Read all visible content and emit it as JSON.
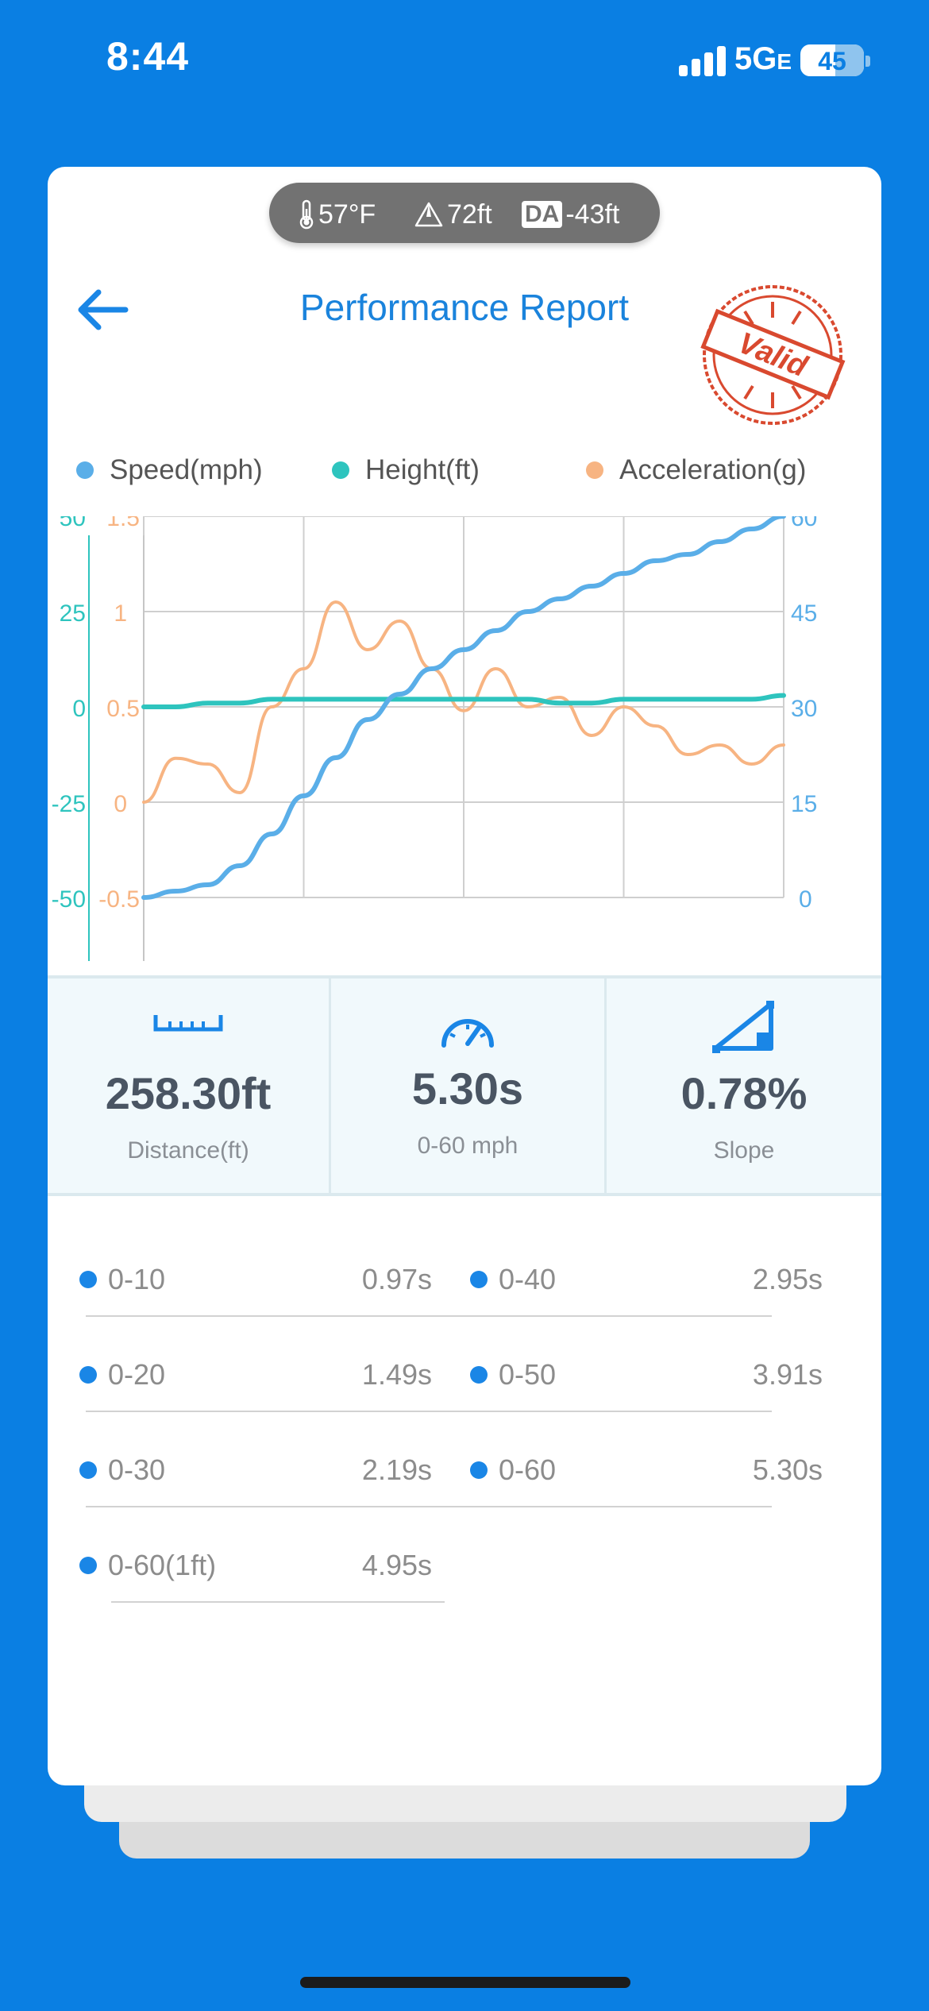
{
  "status_bar": {
    "time": "8:44",
    "network": "5G",
    "network_suffix": "E",
    "battery": "45"
  },
  "environment": {
    "temperature": "57°F",
    "elevation": "72ft",
    "da_label": "DA",
    "density_altitude": "-43ft"
  },
  "header": {
    "title": "Performance Report",
    "stamp_text": "Valid"
  },
  "legend": [
    {
      "label": "Speed(mph)",
      "color": "#5aaee8"
    },
    {
      "label": "Height(ft)",
      "color": "#2ec4be"
    },
    {
      "label": "Acceleration(g)",
      "color": "#f7b482"
    }
  ],
  "chart_data": {
    "type": "line",
    "x": [
      0,
      0.05,
      0.1,
      0.15,
      0.2,
      0.25,
      0.3,
      0.35,
      0.4,
      0.45,
      0.5,
      0.55,
      0.6,
      0.65,
      0.7,
      0.75,
      0.8,
      0.85,
      0.9,
      0.95,
      1.0
    ],
    "series": [
      {
        "name": "Speed(mph)",
        "axis": "right",
        "values": [
          0,
          1,
          2,
          5,
          10,
          16,
          22,
          28,
          32,
          36,
          39,
          42,
          45,
          47,
          49,
          51,
          53,
          54,
          56,
          58,
          60
        ]
      },
      {
        "name": "Height(ft)",
        "axis": "left_outer",
        "values": [
          0,
          0,
          1,
          1,
          2,
          2,
          2,
          2,
          2,
          2,
          2,
          2,
          2,
          1,
          1,
          2,
          2,
          2,
          2,
          2,
          3
        ]
      },
      {
        "name": "Acceleration(g)",
        "axis": "left_inner",
        "values": [
          0.0,
          0.23,
          0.2,
          0.05,
          0.5,
          0.7,
          1.05,
          0.8,
          0.95,
          0.7,
          0.48,
          0.7,
          0.5,
          0.55,
          0.35,
          0.5,
          0.4,
          0.25,
          0.3,
          0.2,
          0.3
        ]
      }
    ],
    "axes": {
      "left_outer": {
        "ticks": [
          "50",
          "25",
          "0",
          "-25",
          "-50"
        ],
        "range": [
          -50,
          50
        ],
        "color": "#2ec4be"
      },
      "left_inner": {
        "ticks": [
          "1.5",
          "1",
          "0.5",
          "0",
          "-0.5"
        ],
        "range": [
          -0.5,
          1.5
        ],
        "color": "#f7b482"
      },
      "right": {
        "ticks": [
          "60",
          "45",
          "30",
          "15",
          "0"
        ],
        "range": [
          0,
          60
        ],
        "color": "#5aaee8"
      }
    },
    "grid": true
  },
  "stats": [
    {
      "icon": "ruler-icon",
      "value": "258.30ft",
      "label": "Distance(ft)"
    },
    {
      "icon": "speedometer-icon",
      "value": "5.30s",
      "label": "0-60 mph"
    },
    {
      "icon": "slope-icon",
      "value": "0.78%",
      "label": "Slope"
    }
  ],
  "splits": [
    {
      "name": "0-10",
      "value": "0.97s"
    },
    {
      "name": "0-40",
      "value": "2.95s"
    },
    {
      "name": "0-20",
      "value": "1.49s"
    },
    {
      "name": "0-50",
      "value": "3.91s"
    },
    {
      "name": "0-30",
      "value": "2.19s"
    },
    {
      "name": "0-60",
      "value": "5.30s"
    },
    {
      "name": "0-60(1ft)",
      "value": "4.95s"
    }
  ]
}
